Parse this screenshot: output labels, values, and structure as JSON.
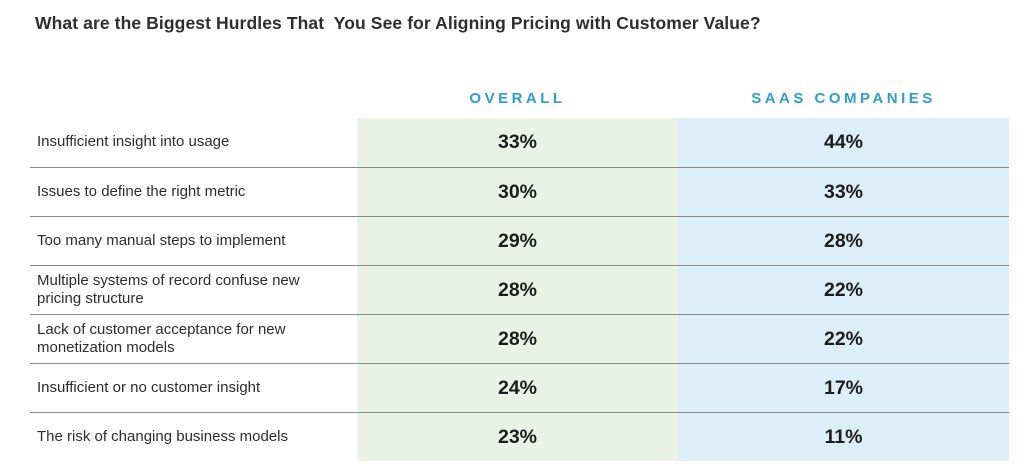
{
  "title": "What are the Biggest Hurdles That  You See for Aligning Pricing with Customer Value?",
  "table": {
    "columns": {
      "overall_header": "OVERALL",
      "saas_header": "SAAS COMPANIES"
    },
    "rows": [
      {
        "label": "Insufficient insight into usage",
        "overall": "33%",
        "saas": "44%"
      },
      {
        "label": "Issues to define the right metric",
        "overall": "30%",
        "saas": "33%"
      },
      {
        "label": "Too many manual steps to implement",
        "overall": "29%",
        "saas": "28%"
      },
      {
        "label": "Multiple systems of record confuse new pricing structure",
        "overall": "28%",
        "saas": "22%"
      },
      {
        "label": "Lack of customer acceptance for new monetization models",
        "overall": "28%",
        "saas": "22%"
      },
      {
        "label": "Insufficient or no customer insight",
        "overall": "24%",
        "saas": "17%"
      },
      {
        "label": "The risk of changing business models",
        "overall": "23%",
        "saas": "11%"
      }
    ]
  },
  "colors": {
    "accent_teal": "#2e9fc9",
    "overall_column_bg": "#e9f2e4",
    "saas_column_bg": "#dceef7",
    "divider": "#8a8a8a",
    "title_text": "#2e2e2e",
    "label_text": "#2d2d2d",
    "value_text": "#1c1c1c"
  },
  "chart_data": {
    "type": "table",
    "title": "What are the Biggest Hurdles That You See for Aligning Pricing with Customer Value?",
    "categories": [
      "Insufficient insight into usage",
      "Issues to define the right metric",
      "Too many manual steps to implement",
      "Multiple systems of record confuse new pricing structure",
      "Lack of customer acceptance for new monetization models",
      "Insufficient or no customer insight",
      "The risk of changing business models"
    ],
    "series": [
      {
        "name": "Overall",
        "values": [
          33,
          30,
          29,
          28,
          28,
          24,
          23
        ]
      },
      {
        "name": "SaaS Companies",
        "values": [
          44,
          33,
          28,
          22,
          22,
          17,
          11
        ]
      }
    ],
    "unit": "%",
    "legend_position": "top",
    "grid": "horizontal-dividers-only"
  }
}
